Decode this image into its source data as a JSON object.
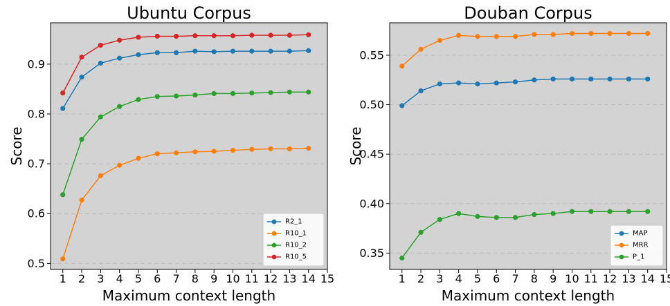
{
  "chart_data": [
    {
      "type": "line",
      "title": "Ubuntu Corpus",
      "xlabel": "Maximum context length",
      "ylabel": "Score",
      "x": [
        1,
        2,
        3,
        4,
        5,
        6,
        7,
        8,
        9,
        10,
        11,
        12,
        13,
        14
      ],
      "xticks": [
        "1",
        "2",
        "3",
        "4",
        "5",
        "6",
        "7",
        "8",
        "9",
        "10",
        "11",
        "12",
        "13",
        "14",
        "15"
      ],
      "xlim": [
        0.35,
        15.0
      ],
      "yticks": [
        "0.5",
        "0.6",
        "0.7",
        "0.8",
        "0.9"
      ],
      "ylim": [
        0.488,
        0.983
      ],
      "grid": "horizontal-dashed",
      "legend": "bottom-right",
      "series": [
        {
          "name": "R2_1",
          "color": "#1f77b4",
          "values": [
            0.811,
            0.874,
            0.902,
            0.912,
            0.919,
            0.923,
            0.923,
            0.926,
            0.925,
            0.926,
            0.926,
            0.926,
            0.926,
            0.927
          ]
        },
        {
          "name": "R10_1",
          "color": "#ff7f0e",
          "values": [
            0.509,
            0.627,
            0.676,
            0.697,
            0.711,
            0.72,
            0.722,
            0.724,
            0.725,
            0.727,
            0.729,
            0.73,
            0.73,
            0.731
          ]
        },
        {
          "name": "R10_2",
          "color": "#2ca02c",
          "values": [
            0.638,
            0.749,
            0.794,
            0.815,
            0.829,
            0.835,
            0.836,
            0.838,
            0.841,
            0.841,
            0.842,
            0.843,
            0.844,
            0.844
          ]
        },
        {
          "name": "R10_5",
          "color": "#d62728",
          "values": [
            0.842,
            0.914,
            0.938,
            0.948,
            0.954,
            0.956,
            0.956,
            0.957,
            0.957,
            0.957,
            0.958,
            0.958,
            0.958,
            0.959
          ]
        }
      ]
    },
    {
      "type": "line",
      "title": "Douban Corpus",
      "xlabel": "Maximum context length",
      "ylabel": "Score",
      "x": [
        1,
        2,
        3,
        4,
        5,
        6,
        7,
        8,
        9,
        10,
        11,
        12,
        13,
        14
      ],
      "xticks": [
        "1",
        "2",
        "3",
        "4",
        "5",
        "6",
        "7",
        "8",
        "9",
        "10",
        "11",
        "12",
        "13",
        "14",
        "15"
      ],
      "xlim": [
        0.35,
        15.0
      ],
      "yticks": [
        "0.35",
        "0.40",
        "0.45",
        "0.50",
        "0.55"
      ],
      "ylim": [
        0.3335,
        0.5828
      ],
      "grid": "horizontal-dashed",
      "legend": "bottom-right",
      "series": [
        {
          "name": "MAP",
          "color": "#1f77b4",
          "values": [
            0.499,
            0.514,
            0.521,
            0.522,
            0.521,
            0.522,
            0.523,
            0.525,
            0.526,
            0.526,
            0.526,
            0.526,
            0.526,
            0.526
          ]
        },
        {
          "name": "MRR",
          "color": "#ff7f0e",
          "values": [
            0.539,
            0.556,
            0.565,
            0.57,
            0.569,
            0.569,
            0.569,
            0.571,
            0.571,
            0.572,
            0.572,
            0.572,
            0.572,
            0.572
          ]
        },
        {
          "name": "P_1",
          "color": "#2ca02c",
          "values": [
            0.345,
            0.371,
            0.384,
            0.39,
            0.387,
            0.386,
            0.386,
            0.389,
            0.39,
            0.392,
            0.392,
            0.392,
            0.392,
            0.392
          ]
        }
      ]
    }
  ]
}
